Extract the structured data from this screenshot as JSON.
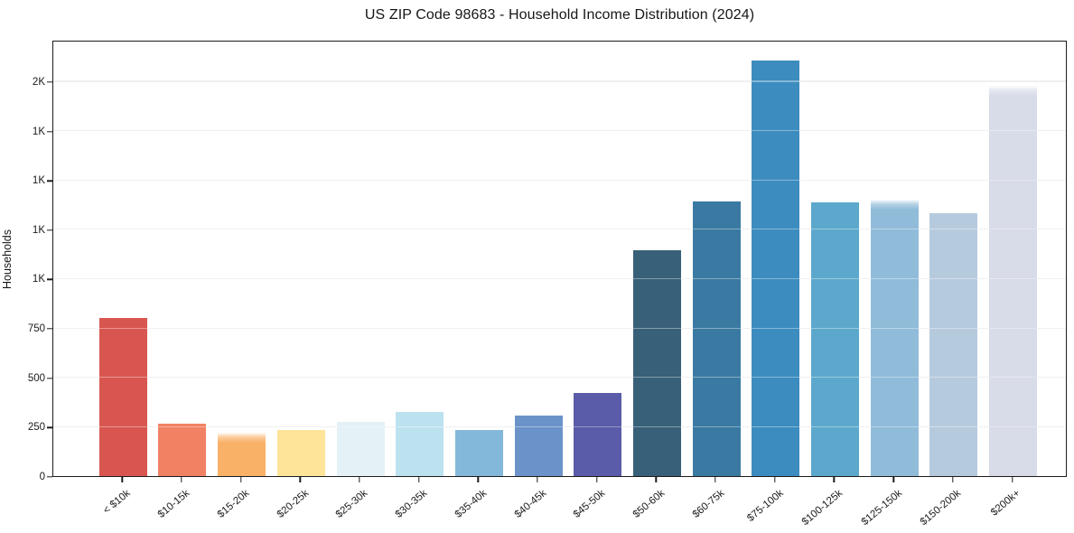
{
  "title": "US ZIP Code 98683 - Household Income Distribution (2024)",
  "chart_data": {
    "type": "bar",
    "title": "US ZIP Code 98683 - Household Income Distribution (2024)",
    "xlabel": "",
    "ylabel": "Households",
    "categories": [
      "< $10k",
      "$10-15k",
      "$15-20k",
      "$20-25k",
      "$25-30k",
      "$30-35k",
      "$35-40k",
      "$40-45k",
      "$45-50k",
      "$50-60k",
      "$60-75k",
      "$75-100k",
      "$100-125k",
      "$125-150k",
      "$150-200k",
      "$200k+"
    ],
    "values": [
      800,
      265,
      220,
      235,
      275,
      325,
      235,
      305,
      420,
      1145,
      1390,
      2105,
      1385,
      1400,
      1330,
      1975
    ],
    "bar_colors": [
      "#d8564f",
      "#f08263",
      "#f9b168",
      "#fde499",
      "#e4f1f6",
      "#bce1ef",
      "#84b8da",
      "#6b93c9",
      "#5a5ba9",
      "#386078",
      "#3a7aa2",
      "#3c8cbf",
      "#5ca8cc",
      "#90bcd9",
      "#b6cade",
      "#d8dbe8"
    ],
    "soft_top_bars": [
      2,
      13,
      15
    ],
    "ylim": [
      0,
      2210
    ],
    "yticks": [
      {
        "value": 0,
        "label": "0"
      },
      {
        "value": 250,
        "label": "250"
      },
      {
        "value": 500,
        "label": "500"
      },
      {
        "value": 750,
        "label": "750"
      },
      {
        "value": 1000,
        "label": "1K"
      },
      {
        "value": 1250,
        "label": "1K"
      },
      {
        "value": 1500,
        "label": "1K"
      },
      {
        "value": 1750,
        "label": "1K"
      },
      {
        "value": 2000,
        "label": "2K"
      }
    ],
    "grid": "horizontal",
    "legend": "none",
    "background_color": "#ffffff",
    "gridline_color": "#e7e7e7"
  }
}
